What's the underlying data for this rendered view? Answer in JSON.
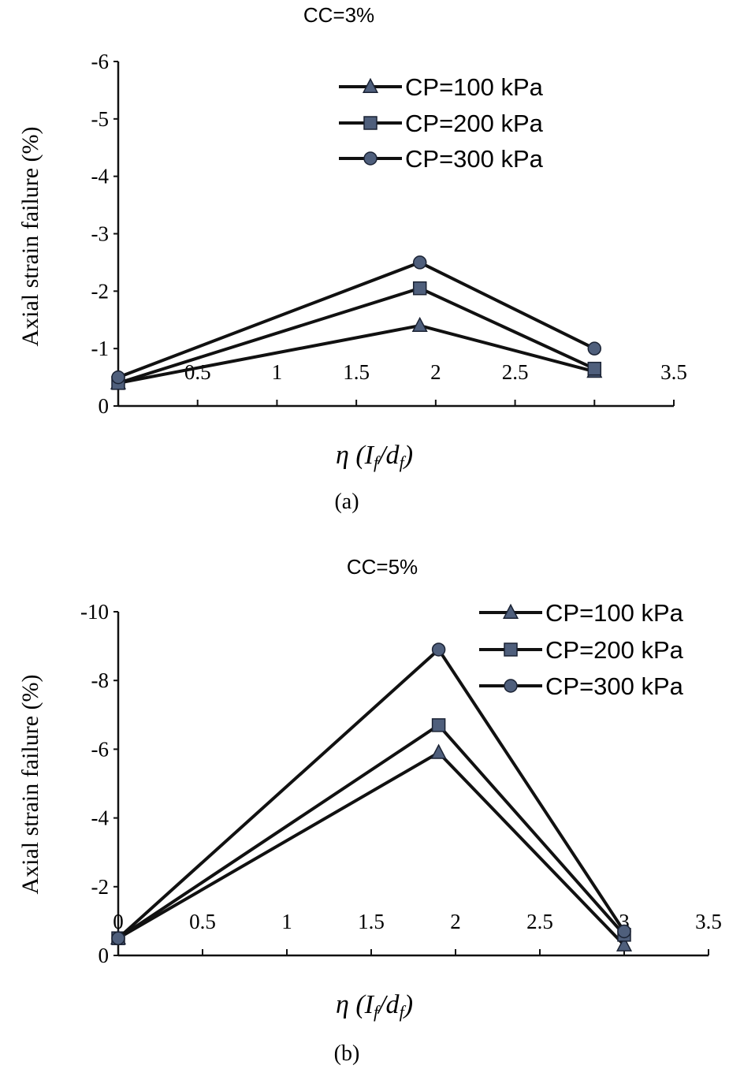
{
  "chart_data": [
    {
      "type": "line",
      "title": "CC=3%",
      "caption": "(a)",
      "xlabel": "η (I_f/d_f)",
      "xlabel_main": "η (I",
      "xlabel_sub1": "f",
      "xlabel_mid": "/d",
      "xlabel_sub2": "f",
      "xlabel_end": ")",
      "ylabel": "Axial strain failure (%)",
      "xlim": [
        0,
        3.5
      ],
      "ylim": [
        0,
        -6
      ],
      "y_inverted": true,
      "x_ticks": [
        0,
        0.5,
        1,
        1.5,
        2,
        2.5,
        3,
        3.5
      ],
      "x_tick_labels": [
        "",
        "0.5",
        "1",
        "1.5",
        "2",
        "2.5",
        "",
        "3.5"
      ],
      "y_ticks": [
        0,
        -1,
        -2,
        -3,
        -4,
        -5,
        -6
      ],
      "y_tick_labels": [
        "0",
        "-1",
        "-2",
        "-3",
        "-4",
        "-5",
        "-6"
      ],
      "grid": false,
      "legend_placement": "top-right",
      "x": [
        0,
        1.9,
        3
      ],
      "series": [
        {
          "name": "CP=100 kPa",
          "marker": "triangle",
          "values": [
            -0.4,
            -1.4,
            -0.6
          ]
        },
        {
          "name": "CP=200 kPa",
          "marker": "square",
          "values": [
            -0.4,
            -2.05,
            -0.65
          ]
        },
        {
          "name": "CP=300 kPa",
          "marker": "circle",
          "values": [
            -0.5,
            -2.5,
            -1.0
          ]
        }
      ]
    },
    {
      "type": "line",
      "title": "CC=5%",
      "caption": "(b)",
      "xlabel": "η (I_f/d_f)",
      "xlabel_main": "η (I",
      "xlabel_sub1": "f",
      "xlabel_mid": "/d",
      "xlabel_sub2": "f",
      "xlabel_end": ")",
      "ylabel": "Axial strain failure (%)",
      "xlim": [
        0,
        3.5
      ],
      "ylim": [
        0,
        -10
      ],
      "y_inverted": true,
      "x_ticks": [
        0,
        0.5,
        1,
        1.5,
        2,
        2.5,
        3,
        3.5
      ],
      "x_tick_labels": [
        "0",
        "0.5",
        "1",
        "1.5",
        "2",
        "2.5",
        "3",
        "3.5"
      ],
      "y_ticks": [
        0,
        -2,
        -4,
        -6,
        -8,
        -10
      ],
      "y_tick_labels": [
        "0",
        "-2",
        "-4",
        "-6",
        "-8",
        "-10"
      ],
      "grid": false,
      "legend_placement": "top-right",
      "x": [
        0,
        1.9,
        3
      ],
      "series": [
        {
          "name": "CP=100 kPa",
          "marker": "triangle",
          "values": [
            -0.5,
            -5.9,
            -0.3
          ]
        },
        {
          "name": "CP=200 kPa",
          "marker": "square",
          "values": [
            -0.5,
            -6.7,
            -0.6
          ]
        },
        {
          "name": "CP=300 kPa",
          "marker": "circle",
          "values": [
            -0.5,
            -8.9,
            -0.7
          ]
        }
      ]
    }
  ],
  "colors": {
    "line": "#111111",
    "marker_fill": "#4f5f7c",
    "marker_stroke": "#1a2233"
  }
}
